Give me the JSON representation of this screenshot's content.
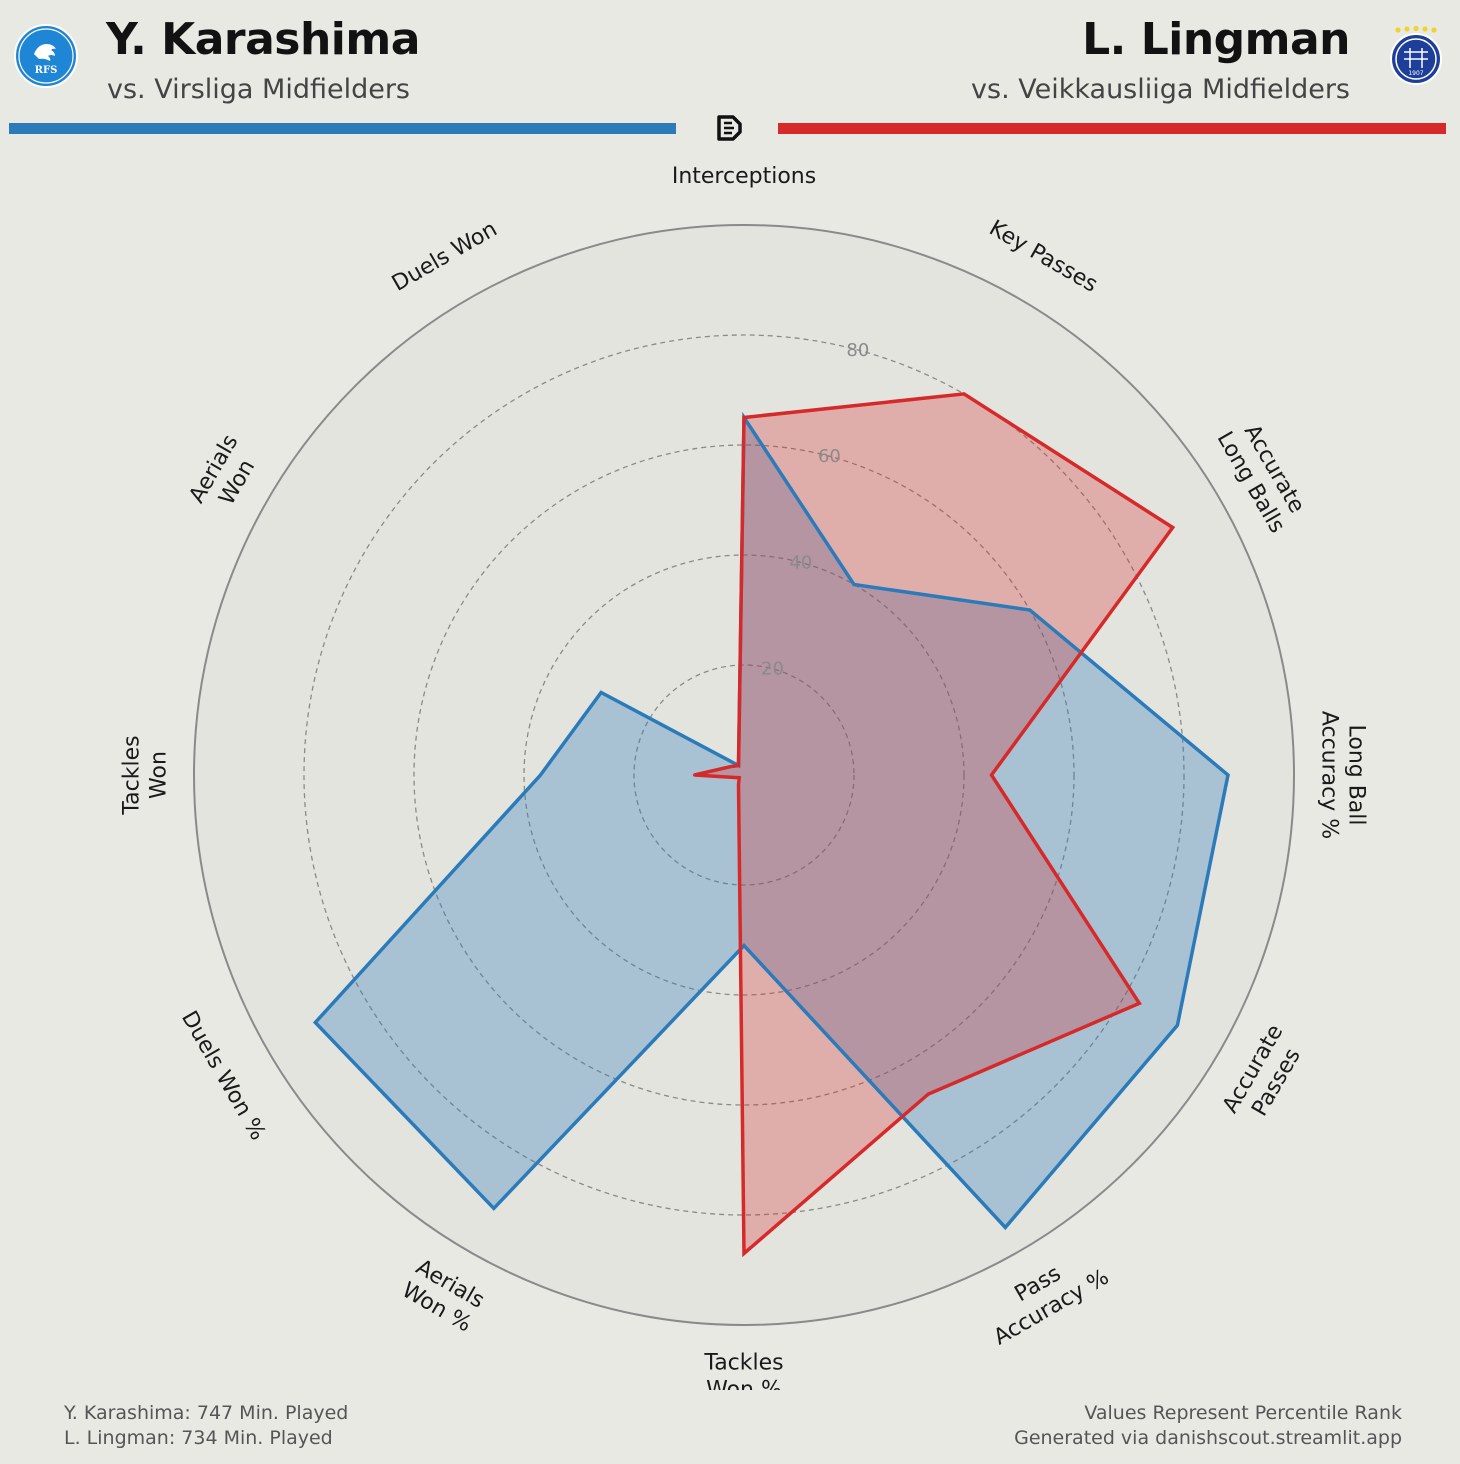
{
  "header": {
    "left": {
      "name": "Y. Karashima",
      "comparison": "vs. Virsliga Midfielders",
      "crest_icon": "rfs-crest-icon",
      "crest_text": "RFS",
      "color": "#2b7bba"
    },
    "right": {
      "name": "L. Lingman",
      "comparison": "vs. Veikkausliiga Midfielders",
      "crest_icon": "hjk-crest-icon",
      "crest_text": "1907",
      "color": "#d62a2a"
    },
    "center_icon": "danishscout-logo-icon"
  },
  "footer": {
    "minutes_left": "Y. Karashima: 747 Min. Played",
    "minutes_right": "L. Lingman: 734 Min. Played",
    "note": "Values Represent Percentile Rank",
    "credit": "Generated via danishscout.streamlit.app"
  },
  "chart_data": {
    "type": "radar",
    "rmax": 100,
    "ring_ticks": [
      20,
      40,
      60,
      80
    ],
    "ring_tick_labels": [
      "20",
      "40",
      "60",
      "80"
    ],
    "categories": [
      [
        "Interceptions"
      ],
      [
        "Key Passes"
      ],
      [
        "Accurate",
        "Long Balls"
      ],
      [
        "Long Ball",
        "Accuracy %"
      ],
      [
        "Accurate",
        "Passes"
      ],
      [
        "Pass",
        "Accuracy %"
      ],
      [
        "Tackles",
        "Won %"
      ],
      [
        "Aerials",
        "Won %"
      ],
      [
        "Duels Won %"
      ],
      [
        "Tackles",
        "Won"
      ],
      [
        "Aerials",
        "Won"
      ],
      [
        "Duels Won"
      ]
    ],
    "series": [
      {
        "name": "Y. Karashima",
        "color": "#2b7bba",
        "fill": "rgba(43,123,186,0.32)",
        "values": [
          65,
          40,
          60,
          88,
          91,
          95,
          31,
          91,
          90,
          37,
          30,
          2
        ]
      },
      {
        "name": "L. Lingman",
        "color": "#d62a2a",
        "fill": "rgba(214,42,42,0.29)",
        "values": [
          65,
          80,
          90,
          45,
          83,
          67,
          87,
          2,
          1,
          9,
          3,
          2
        ]
      }
    ]
  }
}
